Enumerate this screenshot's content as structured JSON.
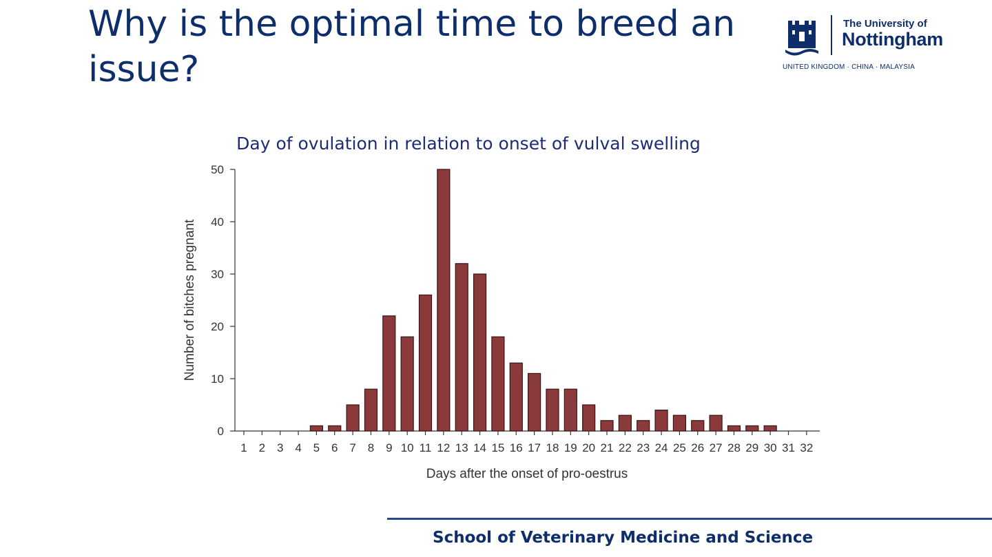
{
  "slide": {
    "title": "Why is the optimal time to breed an issue?",
    "footer": "School of Veterinary Medicine and Science"
  },
  "logo": {
    "line1": "The University of",
    "line2": "Nottingham",
    "subline": "UNITED KINGDOM · CHINA · MALAYSIA",
    "icon": "castle-crest-icon"
  },
  "colors": {
    "title": "#0d2d6b",
    "bar_fill": "#8b3a3c",
    "bar_stroke": "#3a1414",
    "axis": "#333333"
  },
  "chart_data": {
    "type": "bar",
    "title": "Day of ovulation in relation to onset of vulval swelling",
    "xlabel": "Days after the onset of pro-oestrus",
    "ylabel": "Number of bitches pregnant",
    "categories": [
      "1",
      "2",
      "3",
      "4",
      "5",
      "6",
      "7",
      "8",
      "9",
      "10",
      "11",
      "12",
      "13",
      "14",
      "15",
      "16",
      "17",
      "18",
      "19",
      "20",
      "21",
      "22",
      "23",
      "24",
      "25",
      "26",
      "27",
      "28",
      "29",
      "30",
      "31",
      "32"
    ],
    "values": [
      0,
      0,
      0,
      0,
      1,
      1,
      5,
      8,
      22,
      18,
      26,
      50,
      32,
      30,
      18,
      13,
      11,
      8,
      8,
      5,
      2,
      3,
      2,
      4,
      3,
      2,
      3,
      1,
      1,
      1,
      0,
      0
    ],
    "ylim": [
      0,
      50
    ],
    "yticks": [
      0,
      10,
      20,
      30,
      40,
      50
    ],
    "grid": false
  }
}
